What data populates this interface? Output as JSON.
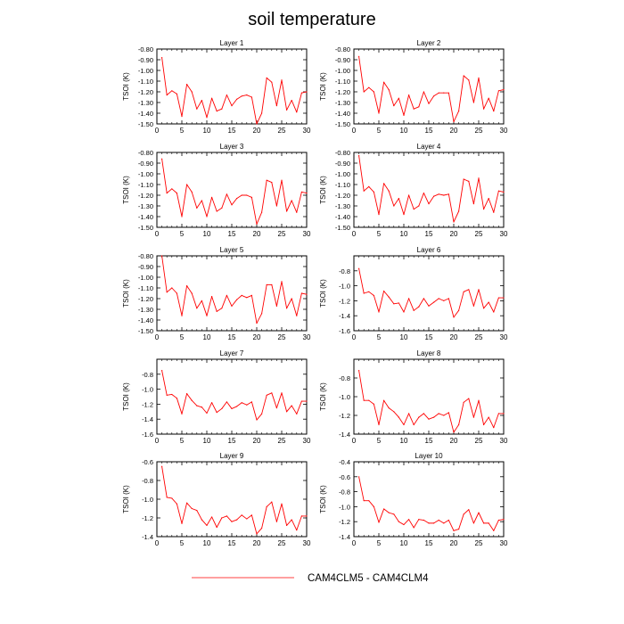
{
  "figure": {
    "title": "soil temperature",
    "legend_label": "CAM4CLM5 - CAM4CLM4",
    "series_color": "#ff0000"
  },
  "chart_data": [
    {
      "type": "line",
      "title": "Layer 1",
      "ylabel": "TSOI  (K)",
      "xlim": [
        0,
        30
      ],
      "ylim": [
        -1.5,
        -0.8
      ],
      "xticks": [
        0,
        5,
        10,
        15,
        20,
        25,
        30
      ],
      "yticks": [
        -1.5,
        -1.4,
        -1.3,
        -1.2,
        -1.1,
        -1.0,
        -0.9,
        -0.8
      ],
      "ytick_labels": [
        "-1.50",
        "-1.40",
        "-1.30",
        "-1.20",
        "-1.10",
        "-1.00",
        "-0.90",
        "-0.80"
      ],
      "series": [
        {
          "name": "CAM4CLM5 - CAM4CLM4",
          "color": "#ff0000",
          "x": [
            1,
            2,
            3,
            4,
            5,
            6,
            7,
            8,
            9,
            10,
            11,
            12,
            13,
            14,
            15,
            16,
            17,
            18,
            19,
            20,
            21,
            22,
            23,
            24,
            25,
            26,
            27,
            28,
            29,
            30
          ],
          "values": [
            -0.88,
            -1.23,
            -1.19,
            -1.22,
            -1.43,
            -1.13,
            -1.2,
            -1.36,
            -1.28,
            -1.44,
            -1.26,
            -1.38,
            -1.36,
            -1.23,
            -1.33,
            -1.27,
            -1.24,
            -1.23,
            -1.25,
            -1.5,
            -1.4,
            -1.07,
            -1.11,
            -1.33,
            -1.09,
            -1.37,
            -1.28,
            -1.39,
            -1.21,
            -1.2
          ]
        }
      ]
    },
    {
      "type": "line",
      "title": "Layer 2",
      "ylabel": "TSOI  (K)",
      "xlim": [
        0,
        30
      ],
      "ylim": [
        -1.5,
        -0.8
      ],
      "xticks": [
        0,
        5,
        10,
        15,
        20,
        25,
        30
      ],
      "yticks": [
        -1.5,
        -1.4,
        -1.3,
        -1.2,
        -1.1,
        -1.0,
        -0.9,
        -0.8
      ],
      "ytick_labels": [
        "-1.50",
        "-1.40",
        "-1.30",
        "-1.20",
        "-1.10",
        "-1.00",
        "-0.90",
        "-0.80"
      ],
      "series": [
        {
          "name": "CAM4CLM5 - CAM4CLM4",
          "color": "#ff0000",
          "x": [
            1,
            2,
            3,
            4,
            5,
            6,
            7,
            8,
            9,
            10,
            11,
            12,
            13,
            14,
            15,
            16,
            17,
            18,
            19,
            20,
            21,
            22,
            23,
            24,
            25,
            26,
            27,
            28,
            29,
            30
          ],
          "values": [
            -0.87,
            -1.2,
            -1.16,
            -1.2,
            -1.4,
            -1.11,
            -1.18,
            -1.33,
            -1.26,
            -1.42,
            -1.23,
            -1.36,
            -1.34,
            -1.2,
            -1.31,
            -1.24,
            -1.21,
            -1.21,
            -1.21,
            -1.48,
            -1.38,
            -1.05,
            -1.09,
            -1.3,
            -1.07,
            -1.36,
            -1.26,
            -1.38,
            -1.19,
            -1.18
          ]
        }
      ]
    },
    {
      "type": "line",
      "title": "Layer 3",
      "ylabel": "TSOI  (K)",
      "xlim": [
        0,
        30
      ],
      "ylim": [
        -1.5,
        -0.8
      ],
      "xticks": [
        0,
        5,
        10,
        15,
        20,
        25,
        30
      ],
      "yticks": [
        -1.5,
        -1.4,
        -1.3,
        -1.2,
        -1.1,
        -1.0,
        -0.9,
        -0.8
      ],
      "ytick_labels": [
        "-1.50",
        "-1.40",
        "-1.30",
        "-1.20",
        "-1.10",
        "-1.00",
        "-0.90",
        "-0.80"
      ],
      "series": [
        {
          "name": "CAM4CLM5 - CAM4CLM4",
          "color": "#ff0000",
          "x": [
            1,
            2,
            3,
            4,
            5,
            6,
            7,
            8,
            9,
            10,
            11,
            12,
            13,
            14,
            15,
            16,
            17,
            18,
            19,
            20,
            21,
            22,
            23,
            24,
            25,
            26,
            27,
            28,
            29,
            30
          ],
          "values": [
            -0.86,
            -1.18,
            -1.14,
            -1.18,
            -1.4,
            -1.1,
            -1.17,
            -1.32,
            -1.25,
            -1.4,
            -1.22,
            -1.35,
            -1.32,
            -1.19,
            -1.29,
            -1.23,
            -1.2,
            -1.2,
            -1.22,
            -1.47,
            -1.36,
            -1.06,
            -1.08,
            -1.3,
            -1.06,
            -1.35,
            -1.25,
            -1.36,
            -1.17,
            -1.18
          ]
        }
      ]
    },
    {
      "type": "line",
      "title": "Layer 4",
      "ylabel": "TSOI  (K)",
      "xlim": [
        0,
        30
      ],
      "ylim": [
        -1.5,
        -0.8
      ],
      "xticks": [
        0,
        5,
        10,
        15,
        20,
        25,
        30
      ],
      "yticks": [
        -1.5,
        -1.4,
        -1.3,
        -1.2,
        -1.1,
        -1.0,
        -0.9,
        -0.8
      ],
      "ytick_labels": [
        "-1.50",
        "-1.40",
        "-1.30",
        "-1.20",
        "-1.10",
        "-1.00",
        "-0.90",
        "-0.80"
      ],
      "series": [
        {
          "name": "CAM4CLM5 - CAM4CLM4",
          "color": "#ff0000",
          "x": [
            1,
            2,
            3,
            4,
            5,
            6,
            7,
            8,
            9,
            10,
            11,
            12,
            13,
            14,
            15,
            16,
            17,
            18,
            19,
            20,
            21,
            22,
            23,
            24,
            25,
            26,
            27,
            28,
            29,
            30
          ],
          "values": [
            -0.83,
            -1.16,
            -1.12,
            -1.17,
            -1.38,
            -1.09,
            -1.16,
            -1.3,
            -1.23,
            -1.38,
            -1.2,
            -1.33,
            -1.3,
            -1.18,
            -1.28,
            -1.21,
            -1.19,
            -1.2,
            -1.19,
            -1.45,
            -1.35,
            -1.05,
            -1.07,
            -1.28,
            -1.04,
            -1.33,
            -1.23,
            -1.36,
            -1.16,
            -1.17
          ]
        }
      ]
    },
    {
      "type": "line",
      "title": "Layer 5",
      "ylabel": "TSOI  (K)",
      "xlim": [
        0,
        30
      ],
      "ylim": [
        -1.5,
        -0.8
      ],
      "xticks": [
        0,
        5,
        10,
        15,
        20,
        25,
        30
      ],
      "yticks": [
        -1.5,
        -1.4,
        -1.3,
        -1.2,
        -1.1,
        -1.0,
        -0.9,
        -0.8
      ],
      "ytick_labels": [
        "-1.50",
        "-1.40",
        "-1.30",
        "-1.20",
        "-1.10",
        "-1.00",
        "-0.90",
        "-0.80"
      ],
      "series": [
        {
          "name": "CAM4CLM5 - CAM4CLM4",
          "color": "#ff0000",
          "x": [
            1,
            2,
            3,
            4,
            5,
            6,
            7,
            8,
            9,
            10,
            11,
            12,
            13,
            14,
            15,
            16,
            17,
            18,
            19,
            20,
            21,
            22,
            23,
            24,
            25,
            26,
            27,
            28,
            29,
            30
          ],
          "values": [
            -0.8,
            -1.14,
            -1.1,
            -1.15,
            -1.36,
            -1.08,
            -1.15,
            -1.29,
            -1.22,
            -1.36,
            -1.18,
            -1.32,
            -1.29,
            -1.17,
            -1.27,
            -1.21,
            -1.17,
            -1.19,
            -1.17,
            -1.43,
            -1.34,
            -1.07,
            -1.07,
            -1.27,
            -1.04,
            -1.29,
            -1.2,
            -1.36,
            -1.15,
            -1.16
          ]
        }
      ]
    },
    {
      "type": "line",
      "title": "Layer 6",
      "ylabel": "TSOI  (K)",
      "xlim": [
        0,
        30
      ],
      "ylim": [
        -1.6,
        -0.6
      ],
      "xticks": [
        0,
        5,
        10,
        15,
        20,
        25,
        30
      ],
      "yticks": [
        -1.6,
        -1.4,
        -1.2,
        -1.0,
        -0.8
      ],
      "ytick_labels": [
        "-1.6",
        "-1.4",
        "-1.2",
        "-1.0",
        "-0.8"
      ],
      "series": [
        {
          "name": "CAM4CLM5 - CAM4CLM4",
          "color": "#ff0000",
          "x": [
            1,
            2,
            3,
            4,
            5,
            6,
            7,
            8,
            9,
            10,
            11,
            12,
            13,
            14,
            15,
            16,
            17,
            18,
            19,
            20,
            21,
            22,
            23,
            24,
            25,
            26,
            27,
            28,
            29,
            30
          ],
          "values": [
            -0.77,
            -1.1,
            -1.08,
            -1.13,
            -1.35,
            -1.07,
            -1.15,
            -1.24,
            -1.23,
            -1.35,
            -1.17,
            -1.33,
            -1.28,
            -1.17,
            -1.27,
            -1.22,
            -1.17,
            -1.2,
            -1.17,
            -1.42,
            -1.33,
            -1.08,
            -1.05,
            -1.27,
            -1.05,
            -1.3,
            -1.22,
            -1.35,
            -1.16,
            -1.16
          ]
        }
      ]
    },
    {
      "type": "line",
      "title": "Layer 7",
      "ylabel": "TSOI  (K)",
      "xlim": [
        0,
        30
      ],
      "ylim": [
        -1.6,
        -0.6
      ],
      "xticks": [
        0,
        5,
        10,
        15,
        20,
        25,
        30
      ],
      "yticks": [
        -1.6,
        -1.4,
        -1.2,
        -1.0,
        -0.8
      ],
      "ytick_labels": [
        "-1.6",
        "-1.4",
        "-1.2",
        "-1.0",
        "-0.8"
      ],
      "series": [
        {
          "name": "CAM4CLM5 - CAM4CLM4",
          "color": "#ff0000",
          "x": [
            1,
            2,
            3,
            4,
            5,
            6,
            7,
            8,
            9,
            10,
            11,
            12,
            13,
            14,
            15,
            16,
            17,
            18,
            19,
            20,
            21,
            22,
            23,
            24,
            25,
            26,
            27,
            28,
            29,
            30
          ],
          "values": [
            -0.75,
            -1.08,
            -1.07,
            -1.12,
            -1.33,
            -1.06,
            -1.15,
            -1.22,
            -1.24,
            -1.32,
            -1.18,
            -1.31,
            -1.26,
            -1.17,
            -1.26,
            -1.23,
            -1.18,
            -1.21,
            -1.17,
            -1.41,
            -1.33,
            -1.08,
            -1.05,
            -1.25,
            -1.05,
            -1.3,
            -1.22,
            -1.33,
            -1.16,
            -1.16
          ]
        }
      ]
    },
    {
      "type": "line",
      "title": "Layer 8",
      "ylabel": "TSOI  (K)",
      "xlim": [
        0,
        30
      ],
      "ylim": [
        -1.4,
        -0.6
      ],
      "xticks": [
        0,
        5,
        10,
        15,
        20,
        25,
        30
      ],
      "yticks": [
        -1.4,
        -1.2,
        -1.0,
        -0.8
      ],
      "ytick_labels": [
        "-1.4",
        "-1.2",
        "-1.0",
        "-0.8"
      ],
      "series": [
        {
          "name": "CAM4CLM5 - CAM4CLM4",
          "color": "#ff0000",
          "x": [
            1,
            2,
            3,
            4,
            5,
            6,
            7,
            8,
            9,
            10,
            11,
            12,
            13,
            14,
            15,
            16,
            17,
            18,
            19,
            20,
            21,
            22,
            23,
            24,
            25,
            26,
            27,
            28,
            29,
            30
          ],
          "values": [
            -0.72,
            -1.04,
            -1.04,
            -1.08,
            -1.3,
            -1.04,
            -1.12,
            -1.16,
            -1.22,
            -1.3,
            -1.18,
            -1.3,
            -1.22,
            -1.18,
            -1.24,
            -1.22,
            -1.18,
            -1.2,
            -1.17,
            -1.38,
            -1.3,
            -1.06,
            -1.02,
            -1.22,
            -1.04,
            -1.3,
            -1.22,
            -1.33,
            -1.18,
            -1.18
          ]
        }
      ]
    },
    {
      "type": "line",
      "title": "Layer 9",
      "ylabel": "TSOI  (K)",
      "xlim": [
        0,
        30
      ],
      "ylim": [
        -1.4,
        -0.6
      ],
      "xticks": [
        0,
        5,
        10,
        15,
        20,
        25,
        30
      ],
      "yticks": [
        -1.4,
        -1.2,
        -1.0,
        -0.8,
        -0.6
      ],
      "ytick_labels": [
        "-1.4",
        "-1.2",
        "-1.0",
        "-0.8",
        "-0.6"
      ],
      "series": [
        {
          "name": "CAM4CLM5 - CAM4CLM4",
          "color": "#ff0000",
          "x": [
            1,
            2,
            3,
            4,
            5,
            6,
            7,
            8,
            9,
            10,
            11,
            12,
            13,
            14,
            15,
            16,
            17,
            18,
            19,
            20,
            21,
            22,
            23,
            24,
            25,
            26,
            27,
            28,
            29,
            30
          ],
          "values": [
            -0.65,
            -0.98,
            -0.99,
            -1.05,
            -1.26,
            -1.04,
            -1.1,
            -1.12,
            -1.22,
            -1.28,
            -1.19,
            -1.3,
            -1.2,
            -1.18,
            -1.24,
            -1.22,
            -1.17,
            -1.21,
            -1.17,
            -1.37,
            -1.31,
            -1.08,
            -1.03,
            -1.24,
            -1.05,
            -1.28,
            -1.22,
            -1.33,
            -1.18,
            -1.18
          ]
        }
      ]
    },
    {
      "type": "line",
      "title": "Layer 10",
      "ylabel": "TSOI  (K)",
      "xlim": [
        0,
        30
      ],
      "ylim": [
        -1.4,
        -0.4
      ],
      "xticks": [
        0,
        5,
        10,
        15,
        20,
        25,
        30
      ],
      "yticks": [
        -1.4,
        -1.2,
        -1.0,
        -0.8,
        -0.6,
        -0.4
      ],
      "ytick_labels": [
        "-1.4",
        "-1.2",
        "-1.0",
        "-0.8",
        "-0.6",
        "-0.4"
      ],
      "series": [
        {
          "name": "CAM4CLM5 - CAM4CLM4",
          "color": "#ff0000",
          "x": [
            1,
            2,
            3,
            4,
            5,
            6,
            7,
            8,
            9,
            10,
            11,
            12,
            13,
            14,
            15,
            16,
            17,
            18,
            19,
            20,
            21,
            22,
            23,
            24,
            25,
            26,
            27,
            28,
            29,
            30
          ],
          "values": [
            -0.6,
            -0.92,
            -0.92,
            -1.0,
            -1.21,
            -1.03,
            -1.08,
            -1.1,
            -1.2,
            -1.24,
            -1.17,
            -1.28,
            -1.17,
            -1.18,
            -1.22,
            -1.22,
            -1.18,
            -1.22,
            -1.18,
            -1.32,
            -1.3,
            -1.1,
            -1.04,
            -1.22,
            -1.08,
            -1.22,
            -1.22,
            -1.32,
            -1.18,
            -1.17
          ]
        }
      ]
    }
  ]
}
